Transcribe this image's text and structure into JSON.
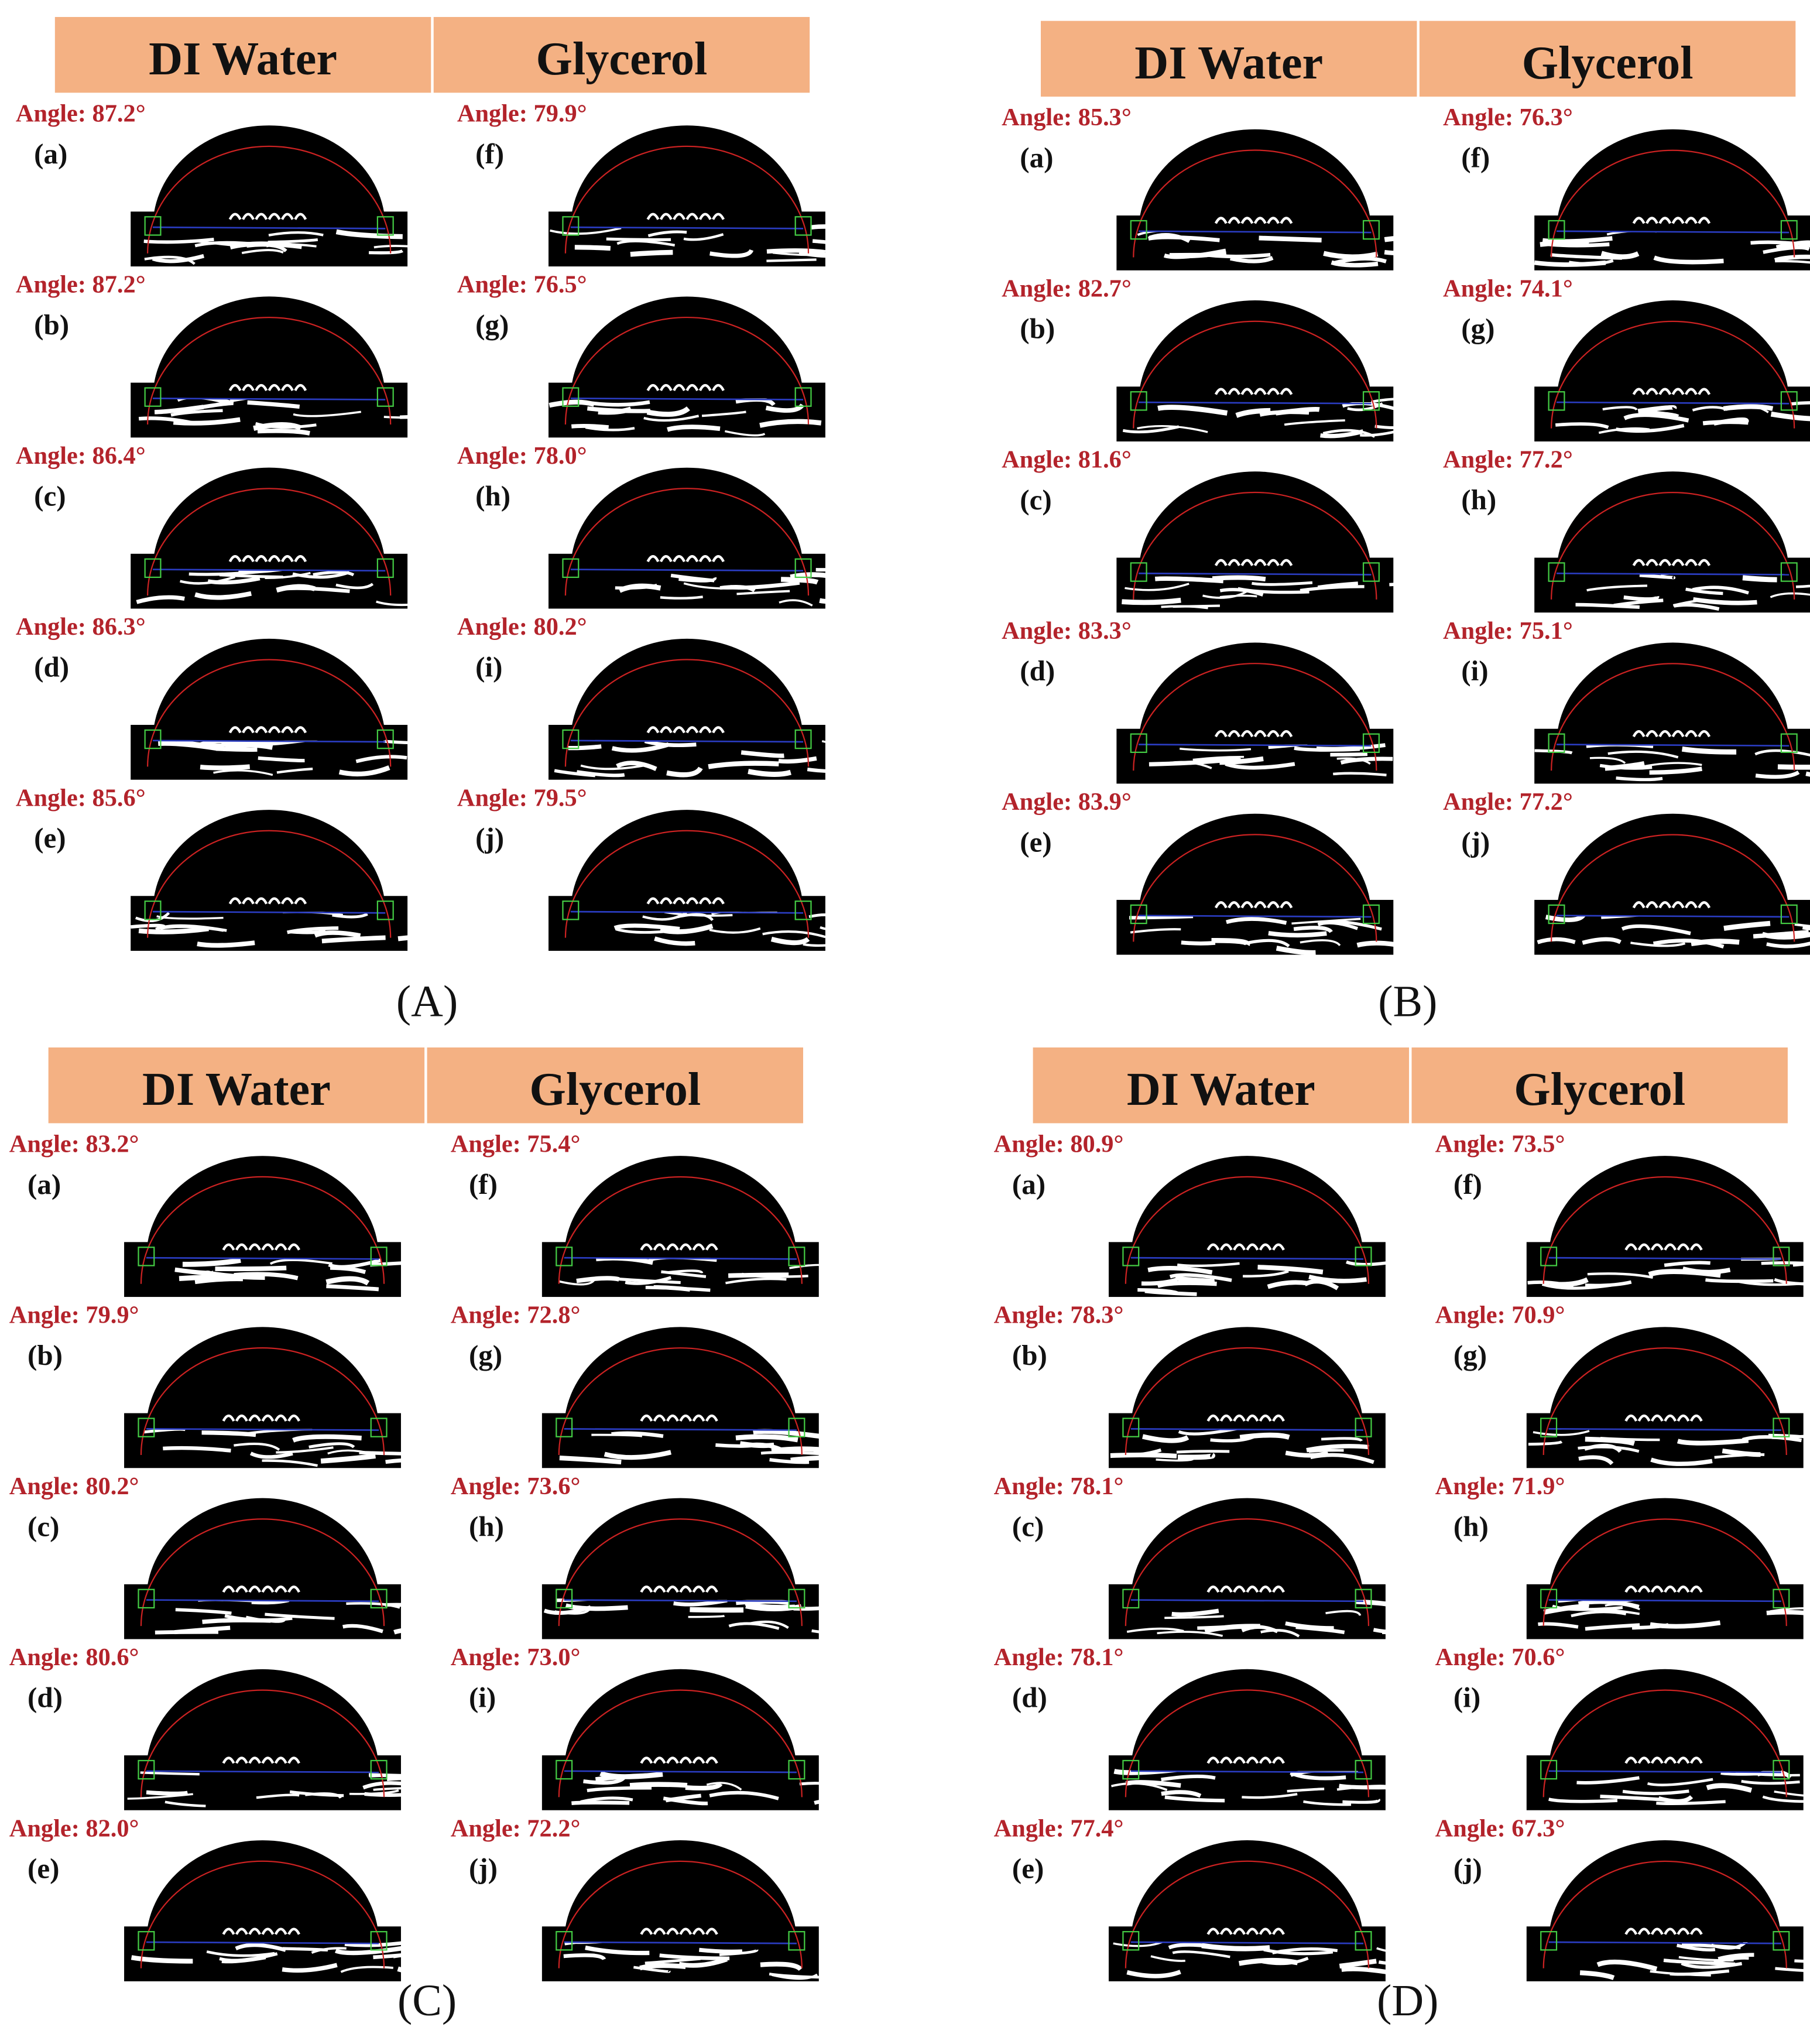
{
  "panels": [
    {
      "label": "(A)",
      "headers": [
        "DI Water",
        "Glycerol"
      ],
      "columns": [
        [
          {
            "angle": "Angle: 87.2°",
            "label": "(a)"
          },
          {
            "angle": "Angle: 87.2°",
            "label": "(b)"
          },
          {
            "angle": "Angle: 86.4°",
            "label": "(c)"
          },
          {
            "angle": "Angle: 86.3°",
            "label": "(d)"
          },
          {
            "angle": "Angle: 85.6°",
            "label": "(e)"
          }
        ],
        [
          {
            "angle": "Angle: 79.9°",
            "label": "(f)"
          },
          {
            "angle": "Angle: 76.5°",
            "label": "(g)"
          },
          {
            "angle": "Angle: 78.0°",
            "label": "(h)"
          },
          {
            "angle": "Angle: 80.2°",
            "label": "(i)"
          },
          {
            "angle": "Angle: 79.5°",
            "label": "(j)"
          }
        ]
      ]
    },
    {
      "label": "(B)",
      "headers": [
        "DI Water",
        "Glycerol"
      ],
      "columns": [
        [
          {
            "angle": "Angle: 85.3°",
            "label": "(a)"
          },
          {
            "angle": "Angle: 82.7°",
            "label": "(b)"
          },
          {
            "angle": "Angle: 81.6°",
            "label": "(c)"
          },
          {
            "angle": "Angle: 83.3°",
            "label": "(d)"
          },
          {
            "angle": "Angle: 83.9°",
            "label": "(e)"
          }
        ],
        [
          {
            "angle": "Angle: 76.3°",
            "label": "(f)"
          },
          {
            "angle": "Angle: 74.1°",
            "label": "(g)"
          },
          {
            "angle": "Angle: 77.2°",
            "label": "(h)"
          },
          {
            "angle": "Angle: 75.1°",
            "label": "(i)"
          },
          {
            "angle": "Angle: 77.2°",
            "label": "(j)"
          }
        ]
      ]
    },
    {
      "label": "(C)",
      "headers": [
        "DI Water",
        "Glycerol"
      ],
      "columns": [
        [
          {
            "angle": "Angle: 83.2°",
            "label": "(a)"
          },
          {
            "angle": "Angle: 79.9°",
            "label": "(b)"
          },
          {
            "angle": "Angle: 80.2°",
            "label": "(c)"
          },
          {
            "angle": "Angle: 80.6°",
            "label": "(d)"
          },
          {
            "angle": "Angle: 82.0°",
            "label": "(e)"
          }
        ],
        [
          {
            "angle": "Angle: 75.4°",
            "label": "(f)"
          },
          {
            "angle": "Angle: 72.8°",
            "label": "(g)"
          },
          {
            "angle": "Angle: 73.6°",
            "label": "(h)"
          },
          {
            "angle": "Angle: 73.0°",
            "label": "(i)"
          },
          {
            "angle": "Angle: 72.2°",
            "label": "(j)"
          }
        ]
      ]
    },
    {
      "label": "(D)",
      "headers": [
        "DI Water",
        "Glycerol"
      ],
      "columns": [
        [
          {
            "angle": "Angle: 80.9°",
            "label": "(a)"
          },
          {
            "angle": "Angle: 78.3°",
            "label": "(b)"
          },
          {
            "angle": "Angle: 78.1°",
            "label": "(c)"
          },
          {
            "angle": "Angle: 78.1°",
            "label": "(d)"
          },
          {
            "angle": "Angle: 77.4°",
            "label": "(e)"
          }
        ],
        [
          {
            "angle": "Angle: 73.5°",
            "label": "(f)"
          },
          {
            "angle": "Angle: 70.9°",
            "label": "(g)"
          },
          {
            "angle": "Angle: 71.9°",
            "label": "(h)"
          },
          {
            "angle": "Angle: 70.6°",
            "label": "(i)"
          },
          {
            "angle": "Angle: 67.3°",
            "label": "(j)"
          }
        ]
      ]
    }
  ]
}
